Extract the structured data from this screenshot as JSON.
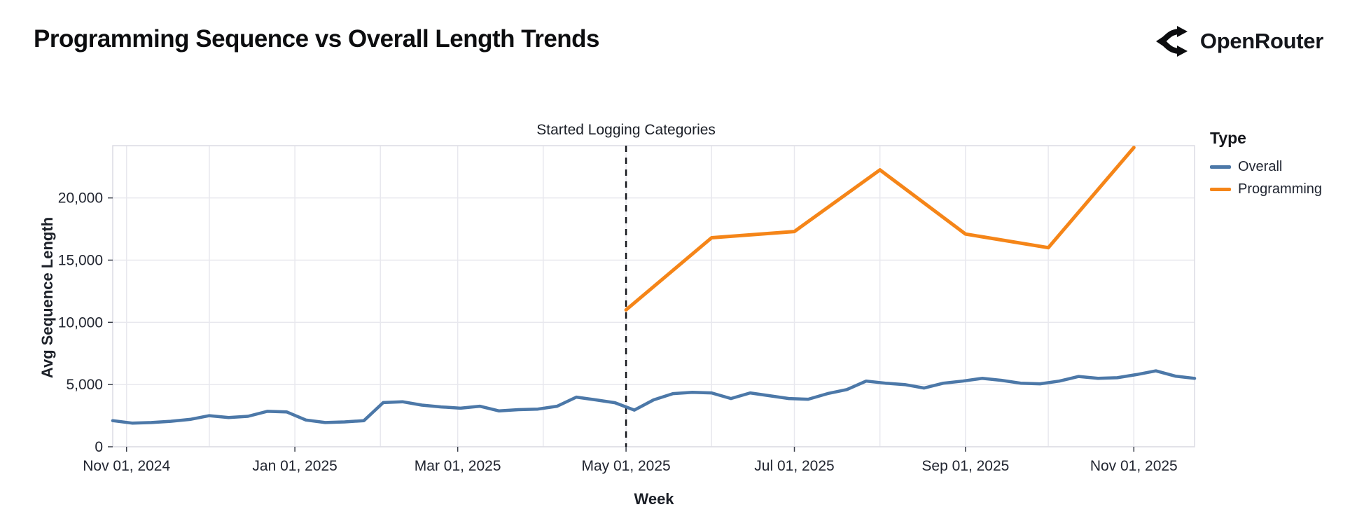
{
  "header": {
    "title": "Programming Sequence vs Overall Length Trends",
    "brand": "OpenRouter"
  },
  "chart_data": {
    "type": "line",
    "title": "Programming Sequence vs Overall Length Trends",
    "xlabel": "Week",
    "ylabel": "Avg Sequence Length",
    "x_domain": [
      "2024-10-27",
      "2025-11-23"
    ],
    "ylim": [
      0,
      24200
    ],
    "grid": true,
    "colors": {
      "overall": "#4c78a8",
      "programming": "#f58518",
      "gridline": "#e8e8ee",
      "border": "#dcdce4",
      "tick_text": "#212530",
      "annotation_line": "#16181d"
    },
    "x_ticks": [
      {
        "date": "2024-11-01",
        "label": "Nov 01, 2024"
      },
      {
        "date": "2025-01-01",
        "label": "Jan 01, 2025"
      },
      {
        "date": "2025-03-01",
        "label": "Mar 01, 2025"
      },
      {
        "date": "2025-05-01",
        "label": "May 01, 2025"
      },
      {
        "date": "2025-07-01",
        "label": "Jul 01, 2025"
      },
      {
        "date": "2025-09-01",
        "label": "Sep 01, 2025"
      },
      {
        "date": "2025-11-01",
        "label": "Nov 01, 2025"
      }
    ],
    "x_gridlines": [
      "2024-11-01",
      "2024-12-01",
      "2025-01-01",
      "2025-02-01",
      "2025-03-01",
      "2025-04-01",
      "2025-05-01",
      "2025-06-01",
      "2025-07-01",
      "2025-08-01",
      "2025-09-01",
      "2025-10-01",
      "2025-11-01"
    ],
    "y_ticks": [
      {
        "value": 0,
        "label": "0"
      },
      {
        "value": 5000,
        "label": "5,000"
      },
      {
        "value": 10000,
        "label": "10,000"
      },
      {
        "value": 15000,
        "label": "15,000"
      },
      {
        "value": 20000,
        "label": "20,000"
      }
    ],
    "annotation": {
      "text": "Started Logging Categories",
      "date": "2025-05-01"
    },
    "legend": {
      "title": "Type",
      "position": "right",
      "entries": [
        {
          "label": "Overall",
          "color": "#4c78a8"
        },
        {
          "label": "Programming",
          "color": "#f58518"
        }
      ]
    },
    "series": [
      {
        "name": "Overall",
        "color": "#4c78a8",
        "points": [
          {
            "date": "2024-10-27",
            "value": 2100
          },
          {
            "date": "2024-11-03",
            "value": 1900
          },
          {
            "date": "2024-11-10",
            "value": 1950
          },
          {
            "date": "2024-11-17",
            "value": 2050
          },
          {
            "date": "2024-11-24",
            "value": 2200
          },
          {
            "date": "2024-12-01",
            "value": 2500
          },
          {
            "date": "2024-12-08",
            "value": 2350
          },
          {
            "date": "2024-12-15",
            "value": 2450
          },
          {
            "date": "2024-12-22",
            "value": 2850
          },
          {
            "date": "2024-12-29",
            "value": 2800
          },
          {
            "date": "2025-01-05",
            "value": 2150
          },
          {
            "date": "2025-01-12",
            "value": 1950
          },
          {
            "date": "2025-01-19",
            "value": 2000
          },
          {
            "date": "2025-01-26",
            "value": 2100
          },
          {
            "date": "2025-02-02",
            "value": 3550
          },
          {
            "date": "2025-02-09",
            "value": 3620
          },
          {
            "date": "2025-02-16",
            "value": 3350
          },
          {
            "date": "2025-02-23",
            "value": 3200
          },
          {
            "date": "2025-03-02",
            "value": 3100
          },
          {
            "date": "2025-03-09",
            "value": 3260
          },
          {
            "date": "2025-03-16",
            "value": 2880
          },
          {
            "date": "2025-03-23",
            "value": 2980
          },
          {
            "date": "2025-03-30",
            "value": 3030
          },
          {
            "date": "2025-04-06",
            "value": 3260
          },
          {
            "date": "2025-04-13",
            "value": 3990
          },
          {
            "date": "2025-04-20",
            "value": 3770
          },
          {
            "date": "2025-04-27",
            "value": 3540
          },
          {
            "date": "2025-05-04",
            "value": 2950
          },
          {
            "date": "2025-05-11",
            "value": 3770
          },
          {
            "date": "2025-05-18",
            "value": 4270
          },
          {
            "date": "2025-05-25",
            "value": 4380
          },
          {
            "date": "2025-06-01",
            "value": 4330
          },
          {
            "date": "2025-06-08",
            "value": 3880
          },
          {
            "date": "2025-06-15",
            "value": 4330
          },
          {
            "date": "2025-06-22",
            "value": 4100
          },
          {
            "date": "2025-06-29",
            "value": 3880
          },
          {
            "date": "2025-07-06",
            "value": 3820
          },
          {
            "date": "2025-07-13",
            "value": 4270
          },
          {
            "date": "2025-07-20",
            "value": 4600
          },
          {
            "date": "2025-07-27",
            "value": 5280
          },
          {
            "date": "2025-08-03",
            "value": 5110
          },
          {
            "date": "2025-08-10",
            "value": 5000
          },
          {
            "date": "2025-08-17",
            "value": 4720
          },
          {
            "date": "2025-08-24",
            "value": 5110
          },
          {
            "date": "2025-08-31",
            "value": 5280
          },
          {
            "date": "2025-09-07",
            "value": 5500
          },
          {
            "date": "2025-09-14",
            "value": 5340
          },
          {
            "date": "2025-09-21",
            "value": 5110
          },
          {
            "date": "2025-09-28",
            "value": 5060
          },
          {
            "date": "2025-10-05",
            "value": 5280
          },
          {
            "date": "2025-10-12",
            "value": 5650
          },
          {
            "date": "2025-10-19",
            "value": 5500
          },
          {
            "date": "2025-10-26",
            "value": 5550
          },
          {
            "date": "2025-11-02",
            "value": 5800
          },
          {
            "date": "2025-11-09",
            "value": 6100
          },
          {
            "date": "2025-11-16",
            "value": 5680
          },
          {
            "date": "2025-11-23",
            "value": 5500
          }
        ]
      },
      {
        "name": "Programming",
        "color": "#f58518",
        "points": [
          {
            "date": "2025-05-01",
            "value": 11000
          },
          {
            "date": "2025-06-01",
            "value": 16800
          },
          {
            "date": "2025-07-01",
            "value": 17300
          },
          {
            "date": "2025-08-01",
            "value": 22250
          },
          {
            "date": "2025-09-01",
            "value": 17100
          },
          {
            "date": "2025-10-01",
            "value": 16000
          },
          {
            "date": "2025-11-01",
            "value": 24050
          }
        ]
      }
    ]
  }
}
